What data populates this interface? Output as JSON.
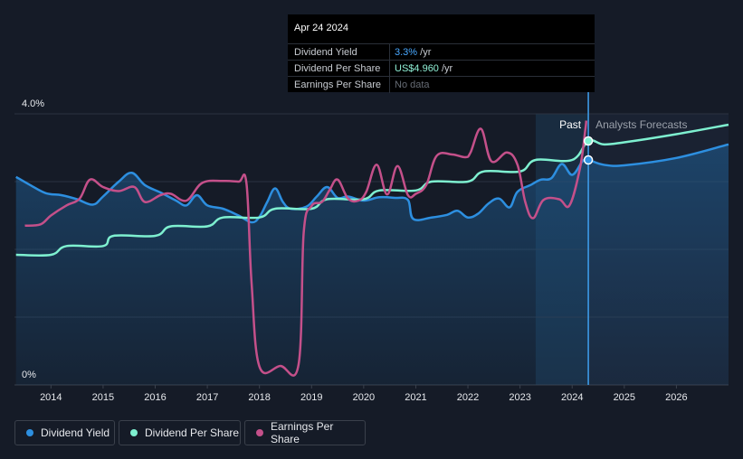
{
  "colors": {
    "dividend_yield": "#2d8fe0",
    "dividend_per_share": "#7ef0d0",
    "earnings_per_share": "#c4508a",
    "background": "#151b27"
  },
  "tooltip": {
    "date": "Apr 24 2024",
    "rows": [
      {
        "label": "Dividend Yield",
        "value": "3.3%",
        "unit": " /yr"
      },
      {
        "label": "Dividend Per Share",
        "value": "US$4.960",
        "unit": " /yr"
      },
      {
        "label": "Earnings Per Share",
        "value": "No data",
        "unit": ""
      }
    ]
  },
  "legend": [
    {
      "label": "Dividend Yield",
      "icon": "dividend-yield-dot"
    },
    {
      "label": "Dividend Per Share",
      "icon": "dividend-per-share-dot"
    },
    {
      "label": "Earnings Per Share",
      "icon": "earnings-per-share-dot"
    }
  ],
  "chart_data": {
    "type": "line",
    "past_label": "Past",
    "forecast_label": "Analysts Forecasts",
    "x_ticks": [
      "2014",
      "2015",
      "2016",
      "2017",
      "2018",
      "2019",
      "2020",
      "2021",
      "2022",
      "2023",
      "2024",
      "2025",
      "2026"
    ],
    "x_range": [
      2013.3,
      2027.0
    ],
    "y_range": [
      0,
      4.0
    ],
    "y_ticks": [
      "0%",
      "4.0%"
    ],
    "current_x": 2024.31,
    "series": [
      {
        "name": "Dividend Yield",
        "points": [
          [
            2013.33,
            3.07
          ],
          [
            2013.6,
            2.95
          ],
          [
            2013.9,
            2.83
          ],
          [
            2014.2,
            2.8
          ],
          [
            2014.5,
            2.74
          ],
          [
            2014.8,
            2.66
          ],
          [
            2015.0,
            2.78
          ],
          [
            2015.3,
            3.0
          ],
          [
            2015.55,
            3.13
          ],
          [
            2015.8,
            2.95
          ],
          [
            2016.1,
            2.84
          ],
          [
            2016.4,
            2.72
          ],
          [
            2016.6,
            2.65
          ],
          [
            2016.8,
            2.8
          ],
          [
            2017.0,
            2.65
          ],
          [
            2017.3,
            2.6
          ],
          [
            2017.6,
            2.5
          ],
          [
            2017.85,
            2.4
          ],
          [
            2018.0,
            2.48
          ],
          [
            2018.15,
            2.7
          ],
          [
            2018.3,
            2.9
          ],
          [
            2018.45,
            2.7
          ],
          [
            2018.6,
            2.6
          ],
          [
            2018.9,
            2.63
          ],
          [
            2019.1,
            2.78
          ],
          [
            2019.3,
            2.92
          ],
          [
            2019.5,
            2.76
          ],
          [
            2019.7,
            2.78
          ],
          [
            2020.0,
            2.72
          ],
          [
            2020.3,
            2.77
          ],
          [
            2020.6,
            2.76
          ],
          [
            2020.85,
            2.73
          ],
          [
            2020.95,
            2.45
          ],
          [
            2021.3,
            2.47
          ],
          [
            2021.6,
            2.51
          ],
          [
            2021.8,
            2.57
          ],
          [
            2022.0,
            2.47
          ],
          [
            2022.2,
            2.53
          ],
          [
            2022.4,
            2.68
          ],
          [
            2022.6,
            2.75
          ],
          [
            2022.8,
            2.62
          ],
          [
            2022.95,
            2.85
          ],
          [
            2023.2,
            2.95
          ],
          [
            2023.4,
            3.03
          ],
          [
            2023.6,
            3.05
          ],
          [
            2023.8,
            3.26
          ],
          [
            2024.0,
            3.1
          ],
          [
            2024.2,
            3.3
          ],
          [
            2024.31,
            3.32
          ],
          [
            2024.6,
            3.25
          ],
          [
            2025.0,
            3.24
          ],
          [
            2026.0,
            3.35
          ],
          [
            2027.0,
            3.55
          ]
        ]
      },
      {
        "name": "Dividend Per Share",
        "points": [
          [
            2013.33,
            1.92
          ],
          [
            2014.0,
            1.92
          ],
          [
            2014.3,
            2.05
          ],
          [
            2015.0,
            2.05
          ],
          [
            2015.2,
            2.2
          ],
          [
            2016.0,
            2.2
          ],
          [
            2016.3,
            2.34
          ],
          [
            2017.0,
            2.34
          ],
          [
            2017.3,
            2.47
          ],
          [
            2018.0,
            2.47
          ],
          [
            2018.3,
            2.6
          ],
          [
            2019.0,
            2.6
          ],
          [
            2019.3,
            2.74
          ],
          [
            2020.0,
            2.74
          ],
          [
            2020.3,
            2.87
          ],
          [
            2021.0,
            2.87
          ],
          [
            2021.3,
            3.0
          ],
          [
            2022.0,
            3.0
          ],
          [
            2022.3,
            3.15
          ],
          [
            2023.0,
            3.15
          ],
          [
            2023.3,
            3.32
          ],
          [
            2024.0,
            3.32
          ],
          [
            2024.31,
            3.6
          ],
          [
            2024.6,
            3.55
          ],
          [
            2025.0,
            3.58
          ],
          [
            2026.0,
            3.7
          ],
          [
            2027.0,
            3.84
          ]
        ]
      },
      {
        "name": "Earnings Per Share",
        "points": [
          [
            2013.5,
            2.35
          ],
          [
            2013.8,
            2.37
          ],
          [
            2014.0,
            2.5
          ],
          [
            2014.3,
            2.65
          ],
          [
            2014.55,
            2.75
          ],
          [
            2014.75,
            3.03
          ],
          [
            2015.0,
            2.92
          ],
          [
            2015.3,
            2.86
          ],
          [
            2015.6,
            2.92
          ],
          [
            2015.8,
            2.7
          ],
          [
            2016.1,
            2.8
          ],
          [
            2016.3,
            2.82
          ],
          [
            2016.6,
            2.72
          ],
          [
            2016.9,
            2.98
          ],
          [
            2017.3,
            3.01
          ],
          [
            2017.6,
            3.0
          ],
          [
            2017.75,
            2.98
          ],
          [
            2017.85,
            1.5
          ],
          [
            2018.0,
            0.27
          ],
          [
            2018.4,
            0.28
          ],
          [
            2018.75,
            0.3
          ],
          [
            2018.85,
            2.25
          ],
          [
            2019.0,
            2.64
          ],
          [
            2019.2,
            2.7
          ],
          [
            2019.35,
            2.88
          ],
          [
            2019.5,
            3.03
          ],
          [
            2019.7,
            2.75
          ],
          [
            2019.9,
            2.72
          ],
          [
            2020.05,
            2.85
          ],
          [
            2020.25,
            3.25
          ],
          [
            2020.45,
            2.81
          ],
          [
            2020.65,
            3.23
          ],
          [
            2020.85,
            2.8
          ],
          [
            2021.0,
            2.82
          ],
          [
            2021.2,
            2.95
          ],
          [
            2021.4,
            3.38
          ],
          [
            2021.7,
            3.4
          ],
          [
            2021.95,
            3.36
          ],
          [
            2022.05,
            3.43
          ],
          [
            2022.25,
            3.78
          ],
          [
            2022.45,
            3.3
          ],
          [
            2022.75,
            3.43
          ],
          [
            2022.95,
            3.25
          ],
          [
            2023.1,
            2.7
          ],
          [
            2023.25,
            2.46
          ],
          [
            2023.45,
            2.73
          ],
          [
            2023.75,
            2.74
          ],
          [
            2023.95,
            2.65
          ],
          [
            2024.15,
            3.2
          ],
          [
            2024.25,
            3.75
          ],
          [
            2024.27,
            3.9
          ]
        ]
      }
    ]
  }
}
